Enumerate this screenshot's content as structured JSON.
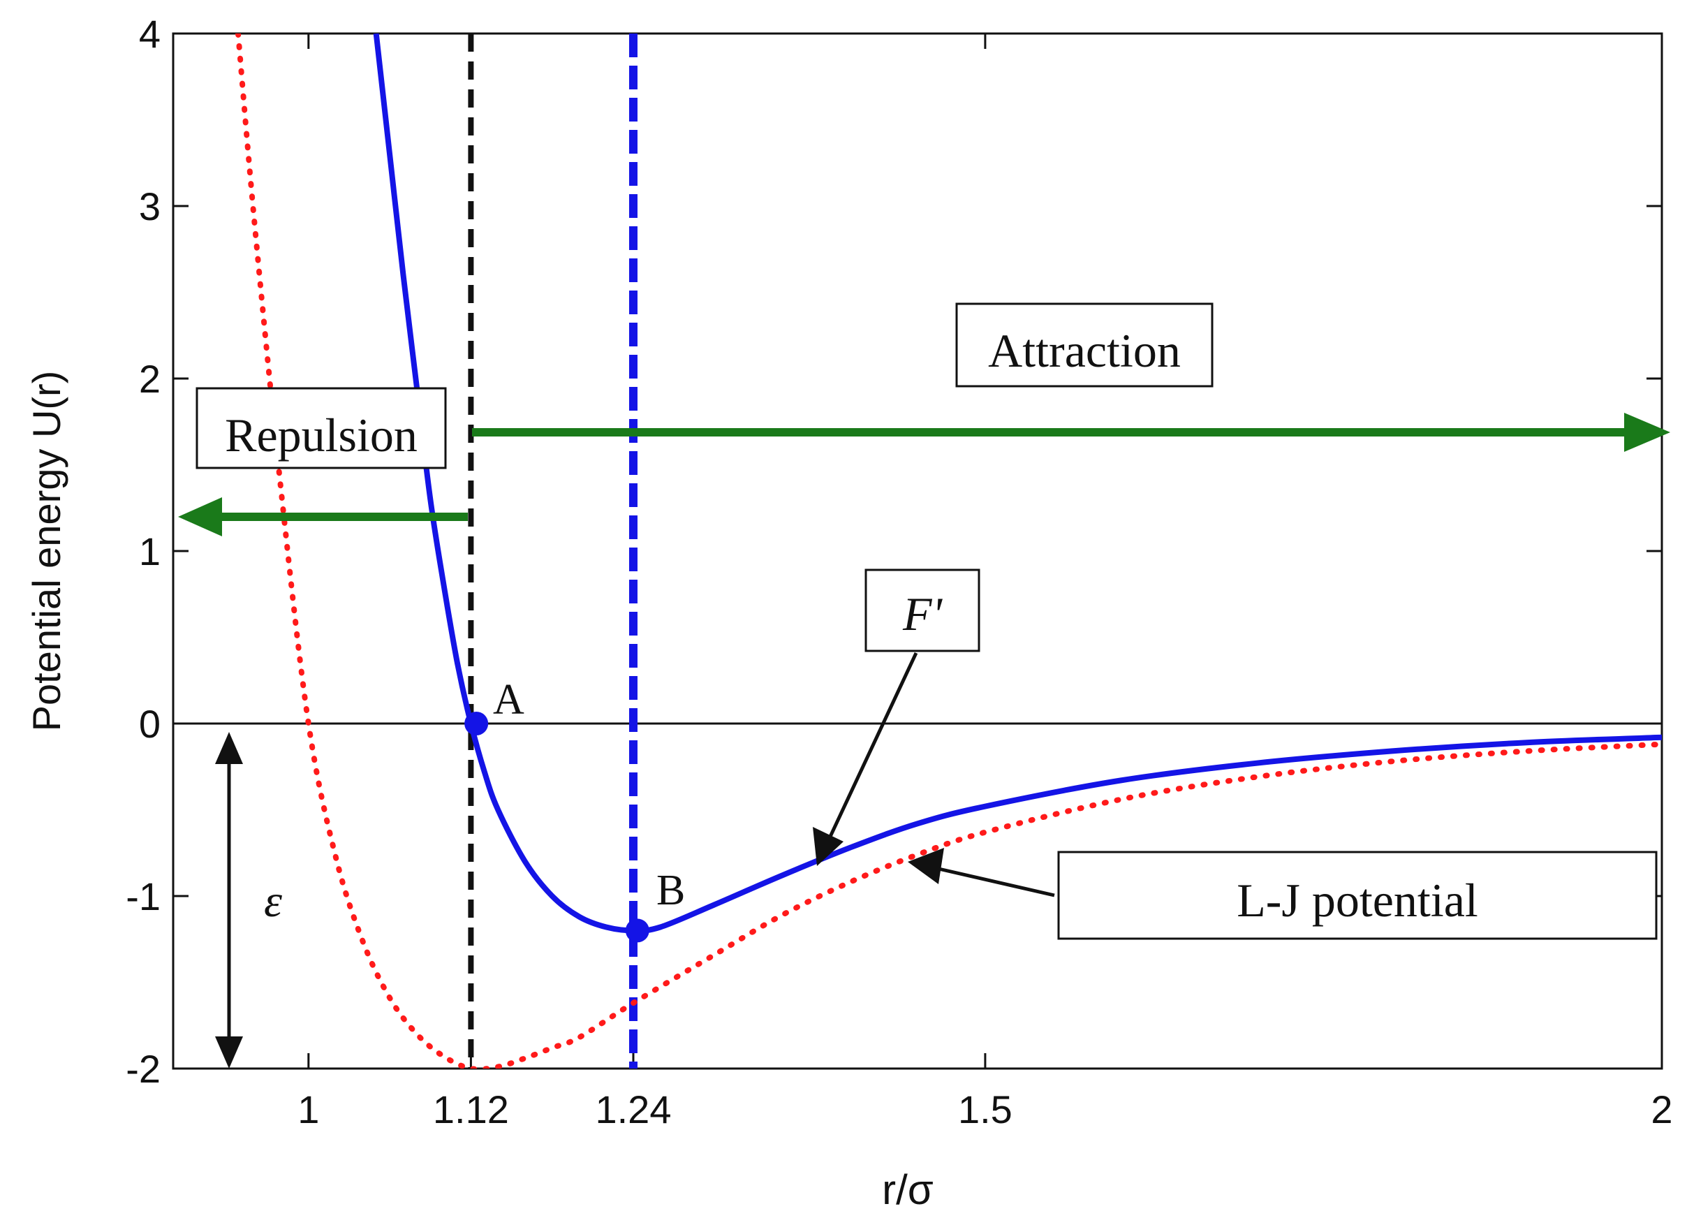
{
  "chart_data": {
    "type": "line",
    "xlabel": "r/σ",
    "ylabel": "Potential energy U(r)",
    "xlim": [
      0.9,
      2.0
    ],
    "ylim": [
      -2,
      4
    ],
    "xticks": [
      1,
      1.12,
      1.24,
      1.5,
      2
    ],
    "xtick_labels": [
      "1",
      "1.12",
      "1.24",
      "1.5",
      "2"
    ],
    "yticks": [
      -2,
      -1,
      0,
      1,
      2,
      3,
      4
    ],
    "ytick_labels": [
      "-2",
      "-1",
      "0",
      "1",
      "2",
      "3",
      "4"
    ],
    "series": [
      {
        "name": "F'",
        "color": "#1414e6",
        "style": "solid",
        "x": [
          1.05,
          1.06,
          1.07,
          1.08,
          1.09,
          1.1,
          1.11,
          1.12,
          1.13,
          1.14,
          1.16,
          1.18,
          1.2,
          1.22,
          1.24,
          1.26,
          1.3,
          1.35,
          1.4,
          1.45,
          1.5,
          1.6,
          1.7,
          1.8,
          1.9,
          2.0
        ],
        "values": [
          4.0,
          3.3,
          2.6,
          1.95,
          1.3,
          0.8,
          0.35,
          0.0,
          -0.28,
          -0.5,
          -0.8,
          -1.0,
          -1.12,
          -1.18,
          -1.2,
          -1.18,
          -1.05,
          -0.88,
          -0.72,
          -0.58,
          -0.48,
          -0.33,
          -0.23,
          -0.16,
          -0.11,
          -0.08
        ]
      },
      {
        "name": "L-J potential",
        "color": "#ff1a1a",
        "style": "dotted",
        "x": [
          0.948,
          0.96,
          0.98,
          1.0,
          1.02,
          1.04,
          1.06,
          1.08,
          1.1,
          1.12,
          1.14,
          1.16,
          1.18,
          1.2,
          1.24,
          1.3,
          1.35,
          1.4,
          1.45,
          1.5,
          1.6,
          1.7,
          1.8,
          1.9,
          2.0
        ],
        "values": [
          4.0,
          2.91,
          1.33,
          0.0,
          -0.77,
          -1.26,
          -1.59,
          -1.8,
          -1.93,
          -2.0,
          -1.99,
          -1.94,
          -1.88,
          -1.82,
          -1.62,
          -1.34,
          -1.11,
          -0.92,
          -0.76,
          -0.63,
          -0.44,
          -0.31,
          -0.22,
          -0.16,
          -0.12
        ]
      }
    ],
    "vlines": [
      {
        "x": 1.12,
        "color": "#000000",
        "style": "dashed"
      },
      {
        "x": 1.24,
        "color": "#1414e6",
        "style": "dashed"
      }
    ],
    "hline": {
      "y": 0,
      "color": "#000000"
    },
    "points": [
      {
        "label": "A",
        "x": 1.124,
        "y": 0.0
      },
      {
        "label": "B",
        "x": 1.243,
        "y": -1.2
      }
    ],
    "annotations": {
      "repulsion": "Repulsion",
      "attraction": "Attraction",
      "f_prime": "F'",
      "lj": "L-J potential",
      "epsilon": "ε"
    },
    "arrows": [
      {
        "label": "Repulsion",
        "from_x": 1.12,
        "to_x": 0.905,
        "y": 1.18,
        "color": "#1a7a1a"
      },
      {
        "label": "Attraction",
        "from_x": 1.124,
        "to_x": 2.0,
        "y": 1.68,
        "color": "#1a7a1a"
      }
    ],
    "epsilon_arrow": {
      "x": 0.942,
      "from_y": 0.0,
      "to_y": -2.0
    }
  }
}
